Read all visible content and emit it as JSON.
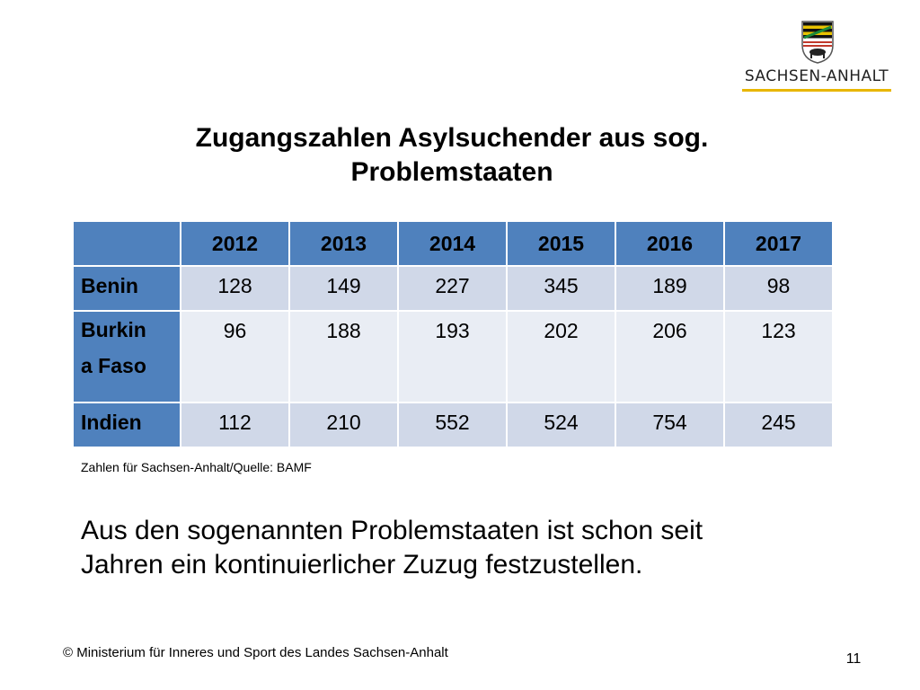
{
  "logo": {
    "text": "SACHSEN-ANHALT"
  },
  "title": {
    "line1": "Zugangszahlen Asylsuchender aus sog.",
    "line2": "Problemstaaten"
  },
  "table": {
    "header_corner": "",
    "years": [
      "2012",
      "2013",
      "2014",
      "2015",
      "2016",
      "2017"
    ],
    "rows": [
      {
        "country": "Benin",
        "values": [
          "128",
          "149",
          "227",
          "345",
          "189",
          "98"
        ]
      },
      {
        "country_line1": "Burkin",
        "country_line2": "a Faso",
        "values": [
          "96",
          "188",
          "193",
          "202",
          "206",
          "123"
        ]
      },
      {
        "country": "Indien",
        "values": [
          "112",
          "210",
          "552",
          "524",
          "754",
          "245"
        ]
      }
    ]
  },
  "source": "Zahlen für Sachsen-Anhalt/Quelle: BAMF",
  "body_text": {
    "line1": "Aus den sogenannten Problemstaaten ist schon seit",
    "line2": "Jahren ein kontinuierlicher Zuzug festzustellen."
  },
  "footer": "© Ministerium für Inneres und Sport des Landes Sachsen-Anhalt",
  "page_number": "11",
  "colors": {
    "header_blue": "#4f81bd",
    "row_band_dark": "#d0d8e8",
    "row_band_light": "#e9edf4",
    "logo_gold": "#e8b600"
  }
}
